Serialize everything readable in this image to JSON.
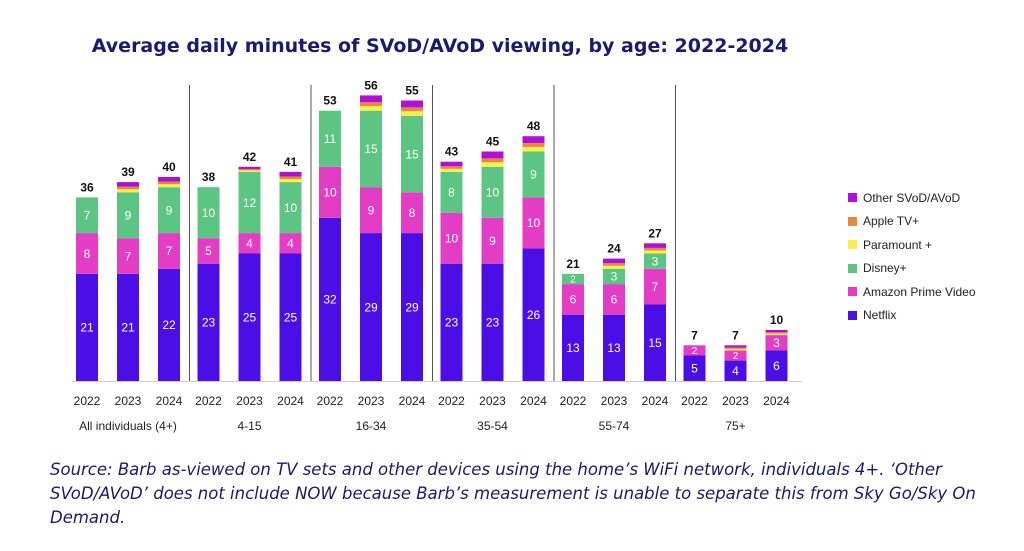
{
  "chart_data": {
    "type": "bar",
    "stacked": true,
    "title": "Average daily minutes of SVoD/AVoD viewing, by age: 2022-2024",
    "groups": [
      {
        "label": "All individuals (4+)",
        "years": [
          "2022",
          "2023",
          "2024"
        ],
        "netflix": [
          21,
          21,
          22
        ],
        "amazon": [
          8,
          7,
          7
        ],
        "disney": [
          7,
          9,
          9
        ],
        "totals": [
          36,
          39,
          40
        ]
      },
      {
        "label": "4-15",
        "years": [
          "2022",
          "2023",
          "2024"
        ],
        "netflix": [
          23,
          25,
          25
        ],
        "amazon": [
          5,
          4,
          4
        ],
        "disney": [
          10,
          12,
          10
        ],
        "totals": [
          38,
          42,
          41
        ]
      },
      {
        "label": "16-34",
        "years": [
          "2022",
          "2023",
          "2024"
        ],
        "netflix": [
          32,
          29,
          29
        ],
        "amazon": [
          10,
          9,
          8
        ],
        "disney": [
          11,
          15,
          15
        ],
        "totals": [
          53,
          56,
          55
        ]
      },
      {
        "label": "35-54",
        "years": [
          "2022",
          "2023",
          "2024"
        ],
        "netflix": [
          23,
          23,
          26
        ],
        "amazon": [
          10,
          9,
          10
        ],
        "disney": [
          8,
          10,
          9
        ],
        "totals": [
          43,
          45,
          48
        ]
      },
      {
        "label": "55-74",
        "years": [
          "2022",
          "2023",
          "2024"
        ],
        "netflix": [
          13,
          13,
          15
        ],
        "amazon": [
          6,
          6,
          7
        ],
        "disney": [
          2,
          3,
          3
        ],
        "totals": [
          21,
          24,
          27
        ]
      },
      {
        "label": "75+",
        "years": [
          "2022",
          "2023",
          "2024"
        ],
        "netflix": [
          5,
          4,
          6
        ],
        "amazon": [
          2,
          2,
          3
        ],
        "disney": [
          0,
          0,
          0
        ],
        "totals": [
          7,
          7,
          10
        ]
      }
    ],
    "series": [
      {
        "key": "netflix",
        "name": "Netflix",
        "color": "#4b0ee6"
      },
      {
        "key": "amazon",
        "name": "Amazon Prime Video",
        "color": "#e23dc4"
      },
      {
        "key": "disney",
        "name": "Disney+",
        "color": "#5cc584"
      },
      {
        "key": "paramount",
        "name": "Paramount +",
        "color": "#f7ef4a"
      },
      {
        "key": "apple",
        "name": "Apple TV+",
        "color": "#e8893a"
      },
      {
        "key": "other",
        "name": "Other SVoD/AVoD",
        "color": "#b10fd8"
      }
    ],
    "legend_order": [
      "other",
      "apple",
      "paramount",
      "disney",
      "amazon",
      "netflix"
    ],
    "ylim": [
      0,
      60
    ],
    "grid": false,
    "legend_position": "right"
  },
  "source_note": "Source: Barb as-viewed on TV sets and other devices using the home’s WiFi network, individuals 4+. ‘Other SVoD/AVoD’ does not include NOW because Barb’s measurement is unable to separate this from Sky Go/Sky On Demand."
}
